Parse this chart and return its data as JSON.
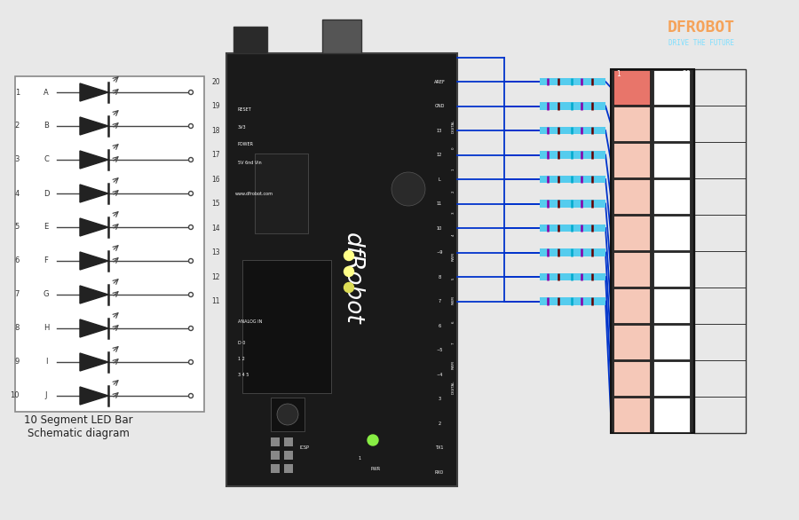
{
  "bg_color": "#e8e8e8",
  "title": "10 Segment LED Bar\nSchematic diagram",
  "dfrobot_orange": "#F5A35A",
  "dfrobot_cyan": "#7FDFFF",
  "arduino_body_color": "#1a1a1a",
  "led_bar_colors": [
    "#E8756A",
    "#F5C8B8",
    "#F5C8B8",
    "#F5C8B8",
    "#F5C8B8",
    "#F5C8B8",
    "#F5C8B8",
    "#F5C8B8",
    "#F5C8B8",
    "#F5C8B8"
  ],
  "num_segments": 10,
  "wire_color": "#0033CC",
  "letters": [
    "A",
    "B",
    "C",
    "D",
    "E",
    "F",
    "G",
    "H",
    "I",
    "J"
  ]
}
